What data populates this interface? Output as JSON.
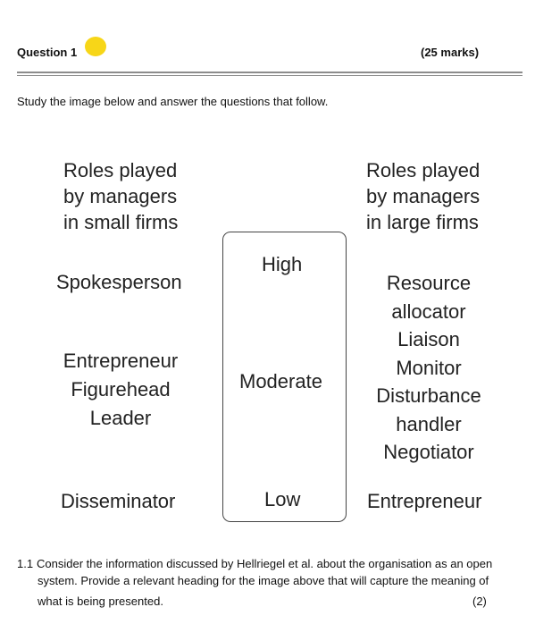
{
  "question": {
    "title": "Question 1",
    "marks": "(25 marks)",
    "intro": "Study the image below and answer the questions that follow."
  },
  "figure": {
    "left_heading": [
      "Roles played",
      "by managers",
      "in small firms"
    ],
    "right_heading": [
      "Roles played",
      "by managers",
      "in large firms"
    ],
    "levels": {
      "high": "High",
      "moderate": "Moderate",
      "low": "Low"
    },
    "small_high": [
      "Spokesperson"
    ],
    "small_moderate": [
      "Entrepreneur",
      "Figurehead",
      "Leader"
    ],
    "small_low": [
      "Disseminator"
    ],
    "large_high": [
      "Resource",
      "allocator",
      "Liaison",
      "Monitor",
      "Disturbance",
      "handler",
      "Negotiator"
    ],
    "large_low": [
      "Entrepreneur"
    ]
  },
  "subquestion": {
    "number": "1.1",
    "line1": "Consider the information discussed by Hellriegel et al. about the organisation as an open",
    "line2": "system. Provide a relevant heading for the image above that will capture the meaning of",
    "line3": "what is being presented.",
    "marks": "(2)"
  }
}
